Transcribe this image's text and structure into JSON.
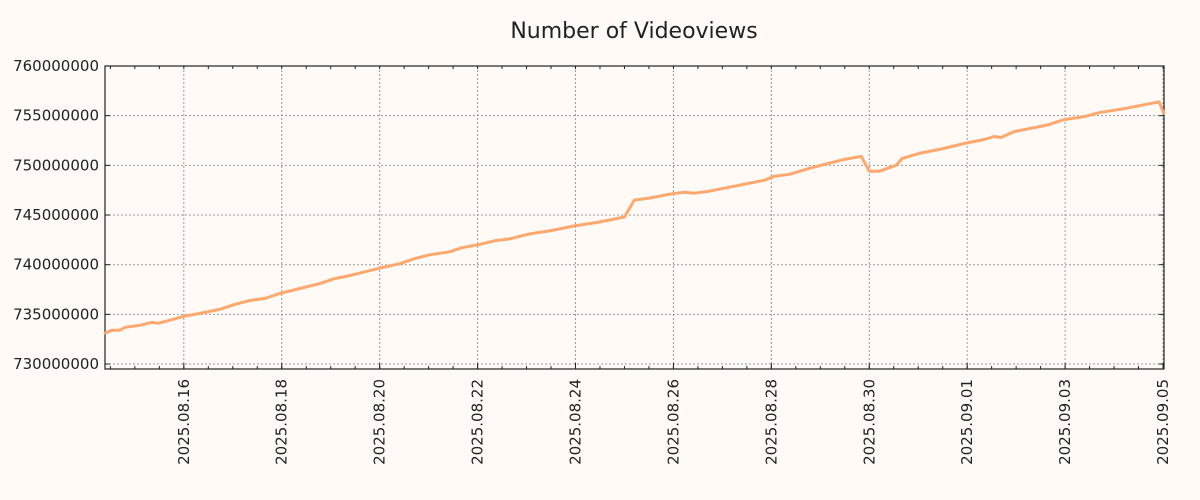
{
  "chart_data": {
    "type": "line",
    "title": "Number of Videoviews",
    "xlabel": "",
    "ylabel": "",
    "x_unit": "days since 2025.08.14 00:00",
    "xlim": [
      0.39,
      22.02
    ],
    "ylim": [
      729500000,
      760000000
    ],
    "grid": true,
    "legend": "none",
    "colors": {
      "line": "#ffa86e",
      "background": "#fffaf5",
      "grid": "#999999",
      "axis": "#222222"
    },
    "yticks": [
      {
        "value": 730000000,
        "label": "730000000"
      },
      {
        "value": 735000000,
        "label": "735000000"
      },
      {
        "value": 740000000,
        "label": "740000000"
      },
      {
        "value": 745000000,
        "label": "745000000"
      },
      {
        "value": 750000000,
        "label": "750000000"
      },
      {
        "value": 755000000,
        "label": "755000000"
      },
      {
        "value": 760000000,
        "label": "760000000"
      }
    ],
    "xticks": [
      {
        "value": 2,
        "label": "2025.08.16"
      },
      {
        "value": 4,
        "label": "2025.08.18"
      },
      {
        "value": 6,
        "label": "2025.08.20"
      },
      {
        "value": 8,
        "label": "2025.08.22"
      },
      {
        "value": 10,
        "label": "2025.08.24"
      },
      {
        "value": 12,
        "label": "2025.08.26"
      },
      {
        "value": 14,
        "label": "2025.08.28"
      },
      {
        "value": 16,
        "label": "2025.08.30"
      },
      {
        "value": 18,
        "label": "2025.09.01"
      },
      {
        "value": 20,
        "label": "2025.09.03"
      },
      {
        "value": 22,
        "label": "2025.09.05"
      }
    ],
    "series": [
      {
        "name": "Videoviews",
        "x": [
          0.39,
          0.53,
          0.69,
          0.8,
          1.1,
          1.35,
          1.47,
          1.71,
          2.0,
          2.33,
          2.53,
          2.73,
          3.04,
          3.35,
          3.65,
          3.96,
          4.37,
          4.78,
          5.08,
          5.39,
          5.8,
          6.04,
          6.41,
          6.71,
          7.02,
          7.43,
          7.67,
          8.0,
          8.35,
          8.65,
          9.06,
          9.47,
          9.98,
          10.49,
          11.0,
          11.2,
          11.51,
          11.92,
          12.22,
          12.43,
          12.73,
          13.35,
          13.86,
          14.06,
          14.37,
          14.78,
          15.08,
          15.49,
          15.84,
          16.0,
          16.2,
          16.55,
          16.67,
          17.02,
          17.43,
          17.94,
          18.35,
          18.55,
          18.69,
          18.96,
          19.47,
          19.67,
          19.98,
          20.39,
          20.69,
          21.2,
          21.82,
          21.92,
          22.02
        ],
        "y": [
          733100000,
          733400000,
          733400000,
          733700000,
          733900000,
          734200000,
          734100000,
          734400000,
          734800000,
          735100000,
          735300000,
          735500000,
          736000000,
          736400000,
          736600000,
          737100000,
          737600000,
          738100000,
          738600000,
          738900000,
          739400000,
          739700000,
          740100000,
          740600000,
          741000000,
          741300000,
          741700000,
          742000000,
          742400000,
          742600000,
          743100000,
          743400000,
          743900000,
          744300000,
          744800000,
          746500000,
          746700000,
          747100000,
          747300000,
          747200000,
          747400000,
          748000000,
          748500000,
          748900000,
          749100000,
          749700000,
          750100000,
          750600000,
          750900000,
          749400000,
          749400000,
          750000000,
          750700000,
          751200000,
          751600000,
          752200000,
          752600000,
          752900000,
          752800000,
          753400000,
          753900000,
          754100000,
          754600000,
          754900000,
          755300000,
          755700000,
          756300000,
          756400000,
          755200000
        ]
      }
    ]
  }
}
